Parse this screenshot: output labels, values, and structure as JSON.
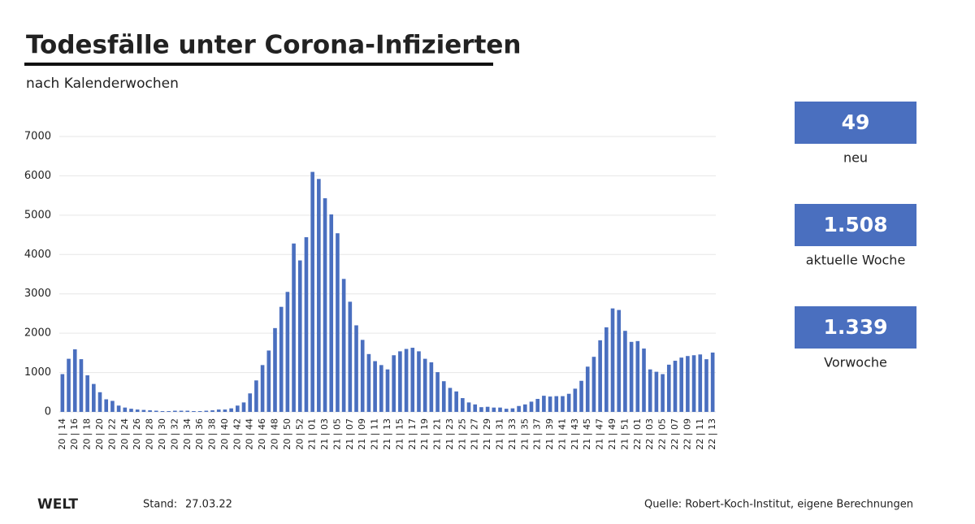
{
  "chart_data": {
    "type": "bar",
    "title": "Todesfälle unter Corona-Infizierten",
    "subtitle": "nach Kalenderwochen",
    "categories": [
      "20 | 14",
      null,
      "20 | 16",
      null,
      "20 | 18",
      null,
      "20 | 20",
      null,
      "20 | 22",
      null,
      "20 | 24",
      null,
      "20 | 26",
      null,
      "20 | 28",
      null,
      "20 | 30",
      null,
      "20 | 32",
      null,
      "20 | 34",
      null,
      "20 | 36",
      null,
      "20 | 38",
      null,
      "20 | 40",
      null,
      "20 | 42",
      null,
      "20 | 44",
      null,
      "20 | 46",
      null,
      "20 | 48",
      null,
      "20 | 50",
      null,
      "20 | 52",
      null,
      "21 | 01",
      null,
      "21 | 03",
      null,
      "21 | 05",
      null,
      "21 | 07",
      null,
      "21 | 09",
      null,
      "21 | 11",
      null,
      "21 | 13",
      null,
      "21 | 15",
      null,
      "21 | 17",
      null,
      "21 | 19",
      null,
      "21 | 21",
      null,
      "21 | 23",
      null,
      "21 | 25",
      null,
      "21 | 27",
      null,
      "21 | 29",
      null,
      "21 | 31",
      null,
      "21 | 33",
      null,
      "21 | 35",
      null,
      "21 | 37",
      null,
      "21 | 39",
      null,
      "21 | 41",
      null,
      "21 | 43",
      null,
      "21 | 45",
      null,
      "21 | 47",
      null,
      "21 | 49",
      null,
      "21 | 51",
      null,
      "22 | 01",
      null,
      "22 | 03",
      null,
      "22 | 05",
      null,
      "22 | 07",
      null,
      "22 | 09",
      null,
      "22 | 11",
      null,
      "22 | 13"
    ],
    "values": [
      960,
      1350,
      1590,
      1340,
      930,
      710,
      500,
      320,
      280,
      160,
      110,
      80,
      60,
      50,
      40,
      30,
      20,
      20,
      30,
      30,
      30,
      20,
      20,
      30,
      40,
      60,
      60,
      90,
      160,
      240,
      470,
      800,
      1190,
      1560,
      2130,
      2670,
      3050,
      4280,
      3850,
      4440,
      6100,
      5920,
      5430,
      5020,
      4540,
      3380,
      2800,
      2200,
      1830,
      1470,
      1290,
      1190,
      1080,
      1440,
      1540,
      1600,
      1630,
      1540,
      1350,
      1260,
      1010,
      780,
      610,
      520,
      350,
      240,
      190,
      120,
      130,
      110,
      110,
      80,
      90,
      150,
      190,
      260,
      330,
      410,
      390,
      400,
      400,
      460,
      590,
      790,
      1150,
      1400,
      1820,
      2150,
      2630,
      2590,
      2060,
      1780,
      1800,
      1610,
      1080,
      1020,
      960,
      1200,
      1300,
      1380,
      1420,
      1440,
      1460,
      1339,
      1508
    ],
    "color": "#4a6fbf",
    "ylim": [
      0,
      7000
    ],
    "yticks": [
      0,
      1000,
      2000,
      3000,
      4000,
      5000,
      6000,
      7000
    ],
    "grid": true
  },
  "stats": [
    {
      "value": "49",
      "label": "neu"
    },
    {
      "value": "1.508",
      "label": "aktuelle Woche"
    },
    {
      "value": "1.339",
      "label": "Vorwoche"
    }
  ],
  "footer": {
    "logo": "WELT",
    "stand_label": "Stand:",
    "stand_date": "27.03.22",
    "source": "Quelle: Robert-Koch-Institut, eigene Berechnungen"
  }
}
